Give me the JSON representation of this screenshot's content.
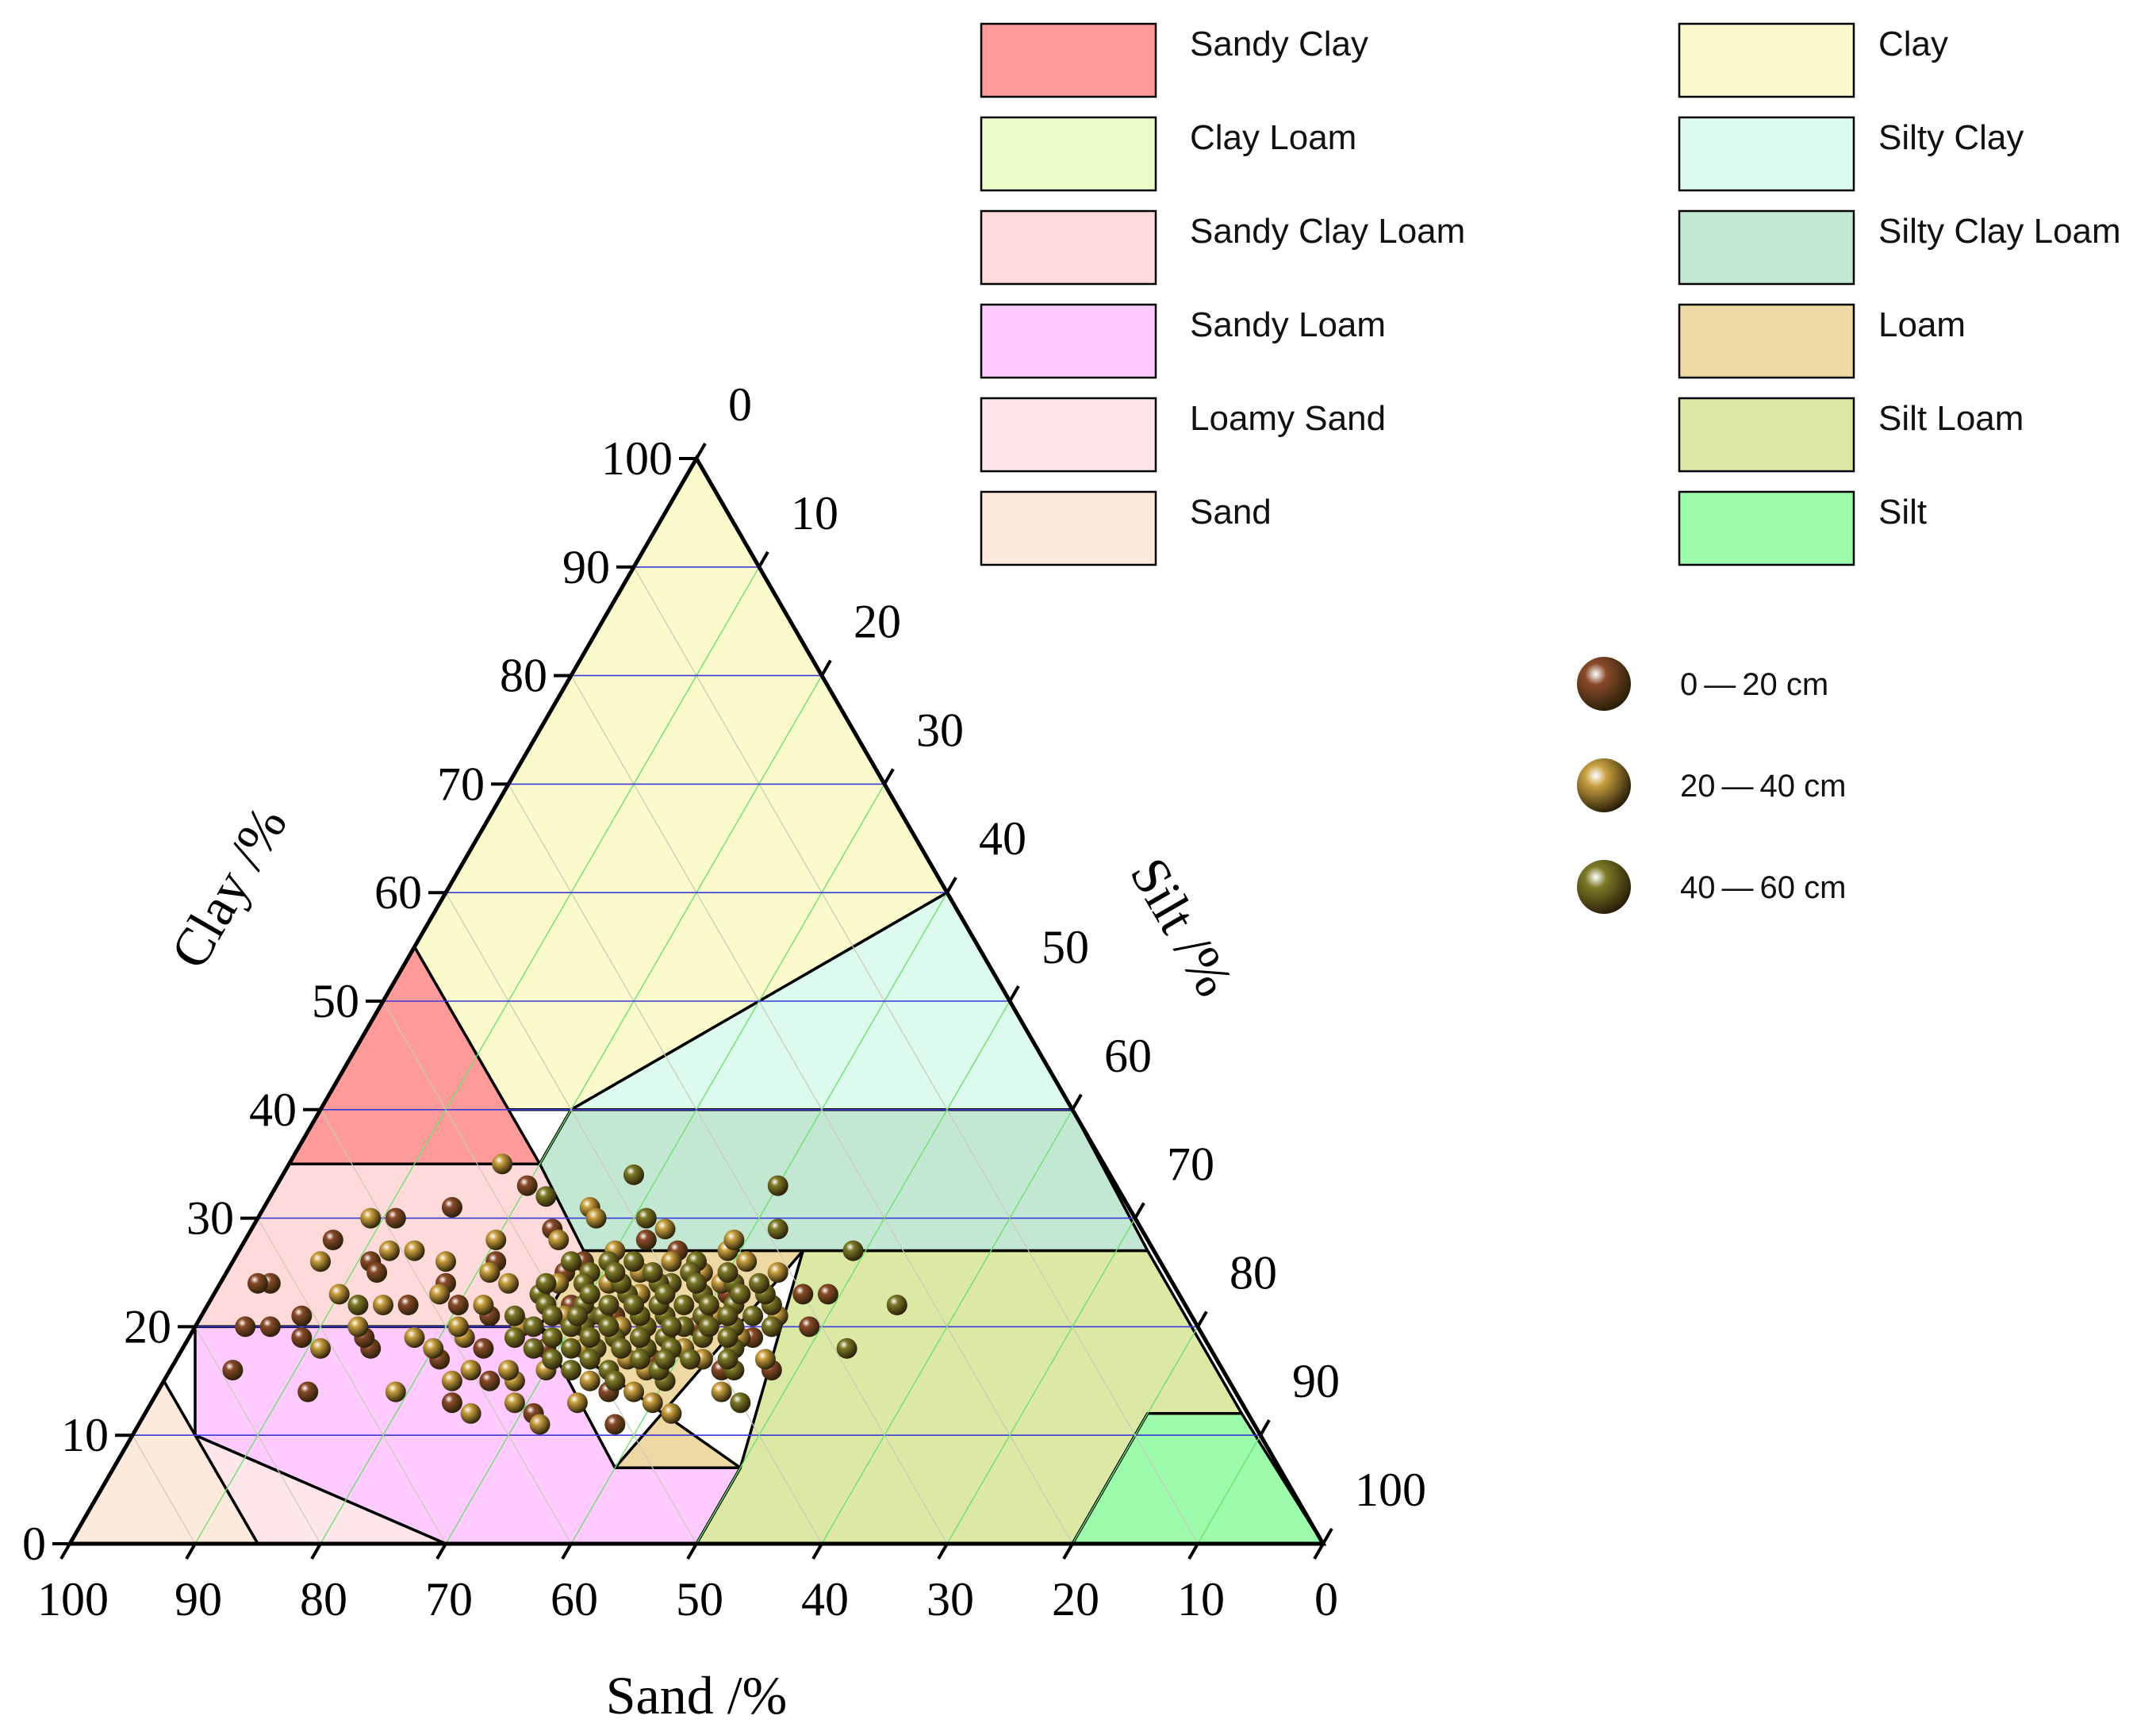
{
  "chart_data": {
    "type": "ternary-scatter",
    "title": "",
    "axes": {
      "clay": {
        "label": "Clay /%",
        "ticks": [
          "0",
          "10",
          "20",
          "30",
          "40",
          "50",
          "60",
          "70",
          "80",
          "90",
          "100"
        ]
      },
      "silt": {
        "label": "Silt /%",
        "ticks": [
          "0",
          "10",
          "20",
          "30",
          "40",
          "50",
          "60",
          "70",
          "80",
          "90",
          "100"
        ]
      },
      "sand": {
        "label": "Sand /%",
        "ticks": [
          "100",
          "90",
          "80",
          "70",
          "60",
          "50",
          "40",
          "30",
          "20",
          "10",
          "0"
        ]
      }
    },
    "regions": [
      {
        "name": "Clay",
        "color": "#fafacc",
        "polygon": [
          [
            100,
            0
          ],
          [
            55,
            0
          ],
          [
            40,
            15
          ],
          [
            40,
            20
          ],
          [
            60,
            40
          ]
        ]
      },
      {
        "name": "Sandy Clay",
        "color": "#ff9a9a",
        "polygon": [
          [
            55,
            0
          ],
          [
            35,
            0
          ],
          [
            35,
            20
          ],
          [
            40,
            15
          ]
        ]
      },
      {
        "name": "Silty Clay",
        "color": "#dcfaee",
        "polygon": [
          [
            60,
            40
          ],
          [
            40,
            20
          ],
          [
            40,
            60
          ]
        ]
      },
      {
        "name": "Clay Loam",
        "color": "#eafcc8",
        "polygon": [
          [
            40,
            15
          ],
          [
            40,
            20
          ],
          [
            27,
            20
          ],
          [
            27,
            45
          ],
          [
            40,
            45
          ]
        ]
      },
      {
        "name": "Silty Clay Loam",
        "color": "#c2e8d4",
        "polygon": [
          [
            40,
            20
          ],
          [
            27,
            20
          ],
          [
            27,
            72.5
          ],
          [
            40,
            60
          ]
        ]
      },
      {
        "name": "Sandy Clay Loam",
        "color": "#ffdada",
        "polygon": [
          [
            35,
            0
          ],
          [
            20,
            0
          ],
          [
            20,
            27.5
          ],
          [
            27,
            27.5
          ],
          [
            35,
            20
          ]
        ]
      },
      {
        "name": "Loam",
        "color": "#eed9a4",
        "polygon": [
          [
            27,
            27.5
          ],
          [
            27,
            45
          ],
          [
            7,
            40
          ],
          [
            7,
            50
          ],
          [
            20,
            27.5
          ]
        ]
      },
      {
        "name": "Silt Loam",
        "color": "#dce9a4",
        "polygon": [
          [
            27,
            45
          ],
          [
            27,
            72.5
          ],
          [
            12,
            87.5
          ],
          [
            12,
            80
          ],
          [
            0,
            80
          ],
          [
            0,
            50
          ],
          [
            7,
            50
          ]
        ]
      },
      {
        "name": "Silt",
        "color": "#9cfcac",
        "polygon": [
          [
            12,
            80
          ],
          [
            12,
            87.5
          ],
          [
            0,
            100
          ],
          [
            0,
            80
          ]
        ]
      },
      {
        "name": "Sandy Loam",
        "color": "#ffcaff",
        "polygon": [
          [
            20,
            0
          ],
          [
            20,
            27.5
          ],
          [
            7,
            40
          ],
          [
            7,
            50
          ],
          [
            0,
            50
          ],
          [
            0,
            30
          ],
          [
            10,
            5
          ]
        ]
      },
      {
        "name": "Loamy Sand",
        "color": "#fee6ea",
        "polygon": [
          [
            10,
            5
          ],
          [
            0,
            30
          ],
          [
            0,
            15
          ],
          [
            15,
            0
          ]
        ]
      },
      {
        "name": "Sand",
        "color": "#feeadc",
        "polygon": [
          [
            15,
            0
          ],
          [
            0,
            15
          ],
          [
            0,
            0
          ]
        ]
      }
    ],
    "legend": {
      "regions_col1": [
        "Sandy Clay",
        "Clay Loam",
        "Sandy Clay Loam",
        "Sandy Loam",
        "Loamy Sand",
        "Sand"
      ],
      "regions_col2": [
        "Clay",
        "Silty Clay",
        "Silty Clay Loam",
        "Loam",
        "Silt Loam",
        "Silt"
      ],
      "series": [
        "0 — 20 cm",
        "20 — 40 cm",
        "40 — 60 cm"
      ]
    },
    "series": [
      {
        "name": "0 — 20 cm",
        "color": "#8a4a2a",
        "points": [
          [
            28,
            7
          ],
          [
            24,
            4
          ],
          [
            20,
            4
          ],
          [
            31,
            15
          ],
          [
            22,
            20
          ],
          [
            18,
            15
          ],
          [
            26,
            11
          ],
          [
            14,
            12
          ],
          [
            20,
            6
          ],
          [
            22,
            16
          ],
          [
            24,
            3
          ],
          [
            16,
            5
          ],
          [
            30,
            11
          ],
          [
            19,
            14
          ],
          [
            17,
            38
          ],
          [
            20,
            49
          ],
          [
            23,
            49
          ],
          [
            26,
            21
          ],
          [
            20,
            40
          ],
          [
            19,
            36
          ],
          [
            21,
            8
          ],
          [
            25,
            27
          ],
          [
            29,
            24
          ],
          [
            15,
            26
          ],
          [
            21,
            33
          ],
          [
            33,
            20
          ],
          [
            18,
            29
          ],
          [
            12,
            31
          ],
          [
            27,
            35
          ],
          [
            23,
            41
          ],
          [
            19,
            9
          ],
          [
            16,
            44
          ],
          [
            22,
            29
          ],
          [
            14,
            36
          ],
          [
            24,
            18
          ],
          [
            17,
            21
          ],
          [
            13,
            24
          ],
          [
            20,
            31
          ],
          [
            21,
            23
          ],
          [
            15,
            40
          ],
          [
            28,
            32
          ],
          [
            18,
            24
          ],
          [
            11,
            38
          ],
          [
            25,
            12
          ],
          [
            17,
            33
          ],
          [
            23,
            47
          ],
          [
            16,
            48
          ],
          [
            19,
            45
          ],
          [
            22,
            36
          ],
          [
            26,
            28
          ]
        ]
      },
      {
        "name": "20 — 40 cm",
        "color": "#c9a040",
        "points": [
          [
            35,
            17
          ],
          [
            31,
            26
          ],
          [
            27,
            14
          ],
          [
            27,
            39
          ],
          [
            25,
            38
          ],
          [
            22,
            27
          ],
          [
            18,
            20
          ],
          [
            12,
            26
          ],
          [
            13,
            40
          ],
          [
            16,
            30
          ],
          [
            30,
            27
          ],
          [
            26,
            7
          ],
          [
            24,
            23
          ],
          [
            21,
            41
          ],
          [
            17,
            47
          ],
          [
            15,
            23
          ],
          [
            11,
            32
          ],
          [
            24,
            31
          ],
          [
            18,
            11
          ],
          [
            28,
            20
          ],
          [
            20,
            26
          ],
          [
            14,
            45
          ],
          [
            23,
            34
          ],
          [
            27,
            30
          ],
          [
            19,
            18
          ],
          [
            16,
            38
          ],
          [
            22,
            14
          ],
          [
            25,
            44
          ],
          [
            21,
            37
          ],
          [
            13,
            34
          ],
          [
            29,
            33
          ],
          [
            20,
            13
          ],
          [
            26,
            17
          ],
          [
            15,
            28
          ],
          [
            17,
            36
          ],
          [
            24,
            40
          ],
          [
            12,
            42
          ],
          [
            22,
            22
          ],
          [
            18,
            32
          ],
          [
            28,
            25
          ],
          [
            30,
            9
          ],
          [
            23,
            10
          ],
          [
            19,
            44
          ],
          [
            14,
            19
          ],
          [
            26,
            35
          ],
          [
            16,
            24
          ],
          [
            21,
            29
          ],
          [
            25,
            21
          ],
          [
            17,
            42
          ],
          [
            20,
            34
          ],
          [
            27,
            12
          ],
          [
            13,
            29
          ],
          [
            24,
            27
          ],
          [
            22,
            45
          ],
          [
            19,
            22
          ],
          [
            15,
            34
          ],
          [
            28,
            39
          ],
          [
            18,
            40
          ],
          [
            23,
            18
          ],
          [
            21,
            46
          ],
          [
            16,
            27
          ],
          [
            25,
            33
          ],
          [
            14,
            38
          ],
          [
            26,
            41
          ],
          [
            20,
            21
          ]
        ]
      },
      {
        "name": "40 — 60 cm",
        "color": "#7c7a28",
        "points": [
          [
            32,
            22
          ],
          [
            30,
            31
          ],
          [
            34,
            28
          ],
          [
            29,
            42
          ],
          [
            33,
            40
          ],
          [
            26,
            37
          ],
          [
            22,
            12
          ],
          [
            22,
            45
          ],
          [
            16,
            45
          ],
          [
            18,
            53
          ],
          [
            22,
            55
          ],
          [
            27,
            49
          ],
          [
            13,
            47
          ],
          [
            15,
            40
          ],
          [
            24,
            36
          ],
          [
            21,
            31
          ],
          [
            19,
            38
          ],
          [
            18,
            33
          ],
          [
            17,
            41
          ],
          [
            20,
            36
          ],
          [
            23,
            33
          ],
          [
            25,
            29
          ],
          [
            22,
            38
          ],
          [
            21,
            35
          ],
          [
            16,
            35
          ],
          [
            24,
            41
          ],
          [
            20,
            43
          ],
          [
            19,
            29
          ],
          [
            23,
            26
          ],
          [
            26,
            32
          ],
          [
            18,
            44
          ],
          [
            17,
            30
          ],
          [
            21,
            40
          ],
          [
            25,
            37
          ],
          [
            20,
            31
          ],
          [
            22,
            30
          ],
          [
            19,
            34
          ],
          [
            24,
            32
          ],
          [
            21,
            44
          ],
          [
            18,
            37
          ],
          [
            23,
            39
          ],
          [
            20,
            27
          ],
          [
            16,
            32
          ],
          [
            22,
            42
          ],
          [
            24,
            35
          ],
          [
            19,
            41
          ],
          [
            26,
            27
          ],
          [
            21,
            25
          ],
          [
            17,
            37
          ],
          [
            23,
            44
          ],
          [
            20,
            39
          ],
          [
            18,
            28
          ],
          [
            25,
            40
          ],
          [
            22,
            34
          ],
          [
            19,
            26
          ],
          [
            21,
            37
          ],
          [
            24,
            29
          ],
          [
            17,
            44
          ],
          [
            20,
            46
          ],
          [
            23,
            30
          ],
          [
            22,
            27
          ],
          [
            18,
            35
          ],
          [
            16,
            39
          ],
          [
            25,
            34
          ],
          [
            21,
            32
          ],
          [
            20,
            38
          ],
          [
            19,
            43
          ],
          [
            24,
            38
          ],
          [
            22,
            36
          ],
          [
            20,
            33
          ],
          [
            18,
            31
          ],
          [
            23,
            42
          ],
          [
            21,
            28
          ],
          [
            26,
            30
          ],
          [
            19,
            36
          ],
          [
            17,
            33
          ],
          [
            22,
            40
          ],
          [
            20,
            30
          ],
          [
            24,
            43
          ],
          [
            18,
            39
          ],
          [
            15,
            36
          ],
          [
            23,
            36
          ],
          [
            21,
            42
          ],
          [
            25,
            31
          ],
          [
            19,
            32
          ],
          [
            20,
            41
          ],
          [
            22,
            32
          ],
          [
            24,
            26
          ],
          [
            17,
            39
          ],
          [
            21,
            30
          ]
        ]
      }
    ]
  }
}
